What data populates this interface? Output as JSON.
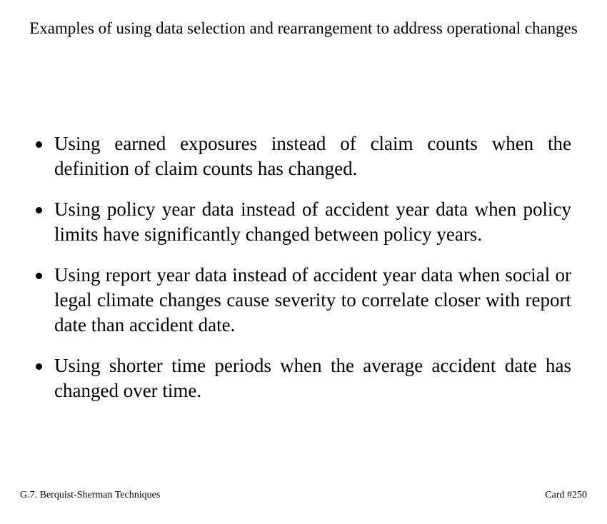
{
  "title": "Examples of using data selection and rearrangement to address operational changes",
  "bullets": [
    "Using earned exposures instead of claim counts when the definition of claim counts has changed.",
    "Using policy year data instead of accident year data when policy limits have significantly changed between policy years.",
    "Using report year data instead of accident year data when social or legal climate changes cause severity to correlate closer with report date than accident date.",
    "Using shorter time periods when the average accident date has changed over time."
  ],
  "footer": {
    "left": "G.7. Berquist-Sherman Techniques",
    "right": "Card #250"
  }
}
